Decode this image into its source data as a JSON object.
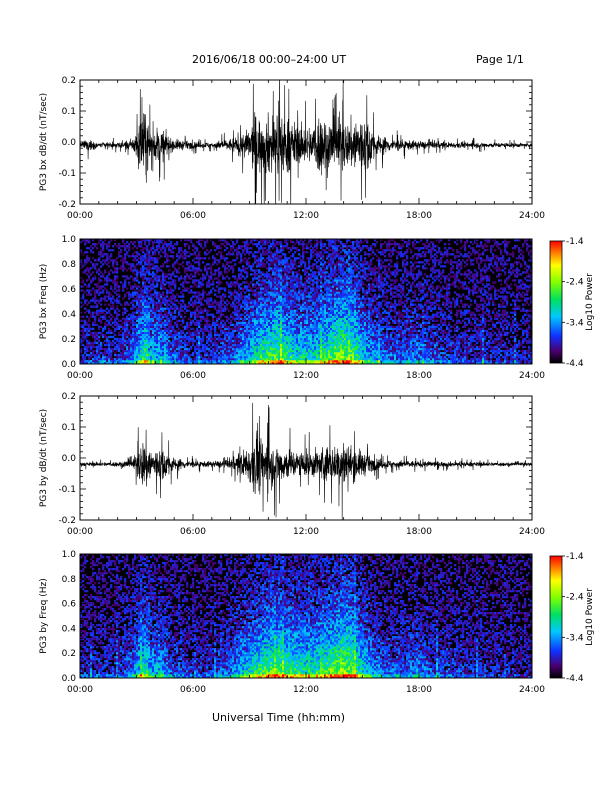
{
  "header": {
    "title": "2016/06/18  00:00–24:00 UT",
    "page": "Page 1/1"
  },
  "x_axis_title": "Universal Time (hh:mm)",
  "chart_data": [
    {
      "type": "line",
      "ylabel": "PG3 bx dB/dt (nT/sec)",
      "xlim": [
        "00:00",
        "24:00"
      ],
      "ylim": [
        -0.2,
        0.2
      ],
      "xticks": [
        "00:00",
        "06:00",
        "12:00",
        "18:00",
        "24:00"
      ],
      "yticks": [
        "0.2",
        "0.1",
        "0.0",
        "-0.1",
        "-0.2"
      ],
      "envelope": {
        "hours": [
          0,
          0.5,
          1,
          2,
          2.8,
          3.2,
          3.5,
          3.8,
          4.2,
          4.8,
          6,
          7,
          8,
          8.7,
          9,
          9.3,
          9.7,
          10.2,
          10.7,
          11.2,
          11.7,
          12.3,
          12.7,
          13.3,
          13.8,
          14.2,
          14.7,
          15.3,
          15.7,
          16.5,
          18,
          20,
          22,
          24
        ],
        "amplitude": [
          0.012,
          0.04,
          0.015,
          0.018,
          0.035,
          0.18,
          0.2,
          0.07,
          0.12,
          0.04,
          0.02,
          0.018,
          0.04,
          0.08,
          0.1,
          0.2,
          0.16,
          0.2,
          0.2,
          0.16,
          0.11,
          0.12,
          0.2,
          0.16,
          0.2,
          0.13,
          0.2,
          0.16,
          0.07,
          0.04,
          0.025,
          0.018,
          0.015,
          0.012
        ]
      }
    },
    {
      "type": "heatmap",
      "ylabel": "PG3 bx Freq (Hz)",
      "xlim": [
        "00:00",
        "24:00"
      ],
      "ylim": [
        0.0,
        1.0
      ],
      "xticks": [
        "00:00",
        "06:00",
        "12:00",
        "18:00",
        "24:00"
      ],
      "yticks": [
        "1.0",
        "0.8",
        "0.6",
        "0.4",
        "0.2",
        "0.0"
      ],
      "colorbar": {
        "label": "Log10 Power",
        "ticks": [
          "-1.4",
          "-2.4",
          "-3.4",
          "-4.4"
        ],
        "range": [
          -4.4,
          -1.4
        ]
      },
      "activity": {
        "hours": [
          0,
          1,
          2,
          2.8,
          3.2,
          3.5,
          3.8,
          4.2,
          4.8,
          6,
          7,
          8,
          8.7,
          9,
          9.5,
          10,
          10.5,
          11,
          11.5,
          12,
          12.5,
          13,
          13.5,
          14,
          14.5,
          15,
          15.5,
          16,
          17,
          18,
          19,
          20,
          22,
          24
        ],
        "level": [
          0.15,
          0.2,
          0.2,
          0.35,
          0.6,
          0.75,
          0.45,
          0.5,
          0.3,
          0.2,
          0.2,
          0.3,
          0.45,
          0.55,
          0.65,
          0.75,
          0.85,
          0.7,
          0.6,
          0.6,
          0.6,
          0.7,
          0.85,
          0.9,
          0.8,
          0.6,
          0.45,
          0.35,
          0.3,
          0.35,
          0.25,
          0.2,
          0.15,
          0.12
        ]
      }
    },
    {
      "type": "line",
      "ylabel": "PG3 by dB/dt (nT/sec)",
      "xlim": [
        "00:00",
        "24:00"
      ],
      "ylim": [
        -0.2,
        0.2
      ],
      "xticks": [
        "00:00",
        "06:00",
        "12:00",
        "18:00",
        "24:00"
      ],
      "yticks": [
        "0.2",
        "0.1",
        "0.0",
        "-0.1",
        "-0.2"
      ],
      "envelope": {
        "hours": [
          0,
          1,
          2,
          2.8,
          3.2,
          3.5,
          3.8,
          4.3,
          5,
          6,
          7,
          8,
          8.5,
          9,
          9.3,
          9.6,
          10,
          10.5,
          11,
          11.5,
          12,
          12.5,
          13,
          13.5,
          14,
          14.5,
          15,
          15.5,
          16.5,
          18,
          20,
          22,
          24
        ],
        "amplitude": [
          0.012,
          0.012,
          0.015,
          0.03,
          0.12,
          0.18,
          0.09,
          0.11,
          0.04,
          0.02,
          0.018,
          0.03,
          0.07,
          0.12,
          0.2,
          0.18,
          0.14,
          0.12,
          0.1,
          0.08,
          0.08,
          0.09,
          0.12,
          0.1,
          0.15,
          0.1,
          0.08,
          0.04,
          0.025,
          0.02,
          0.015,
          0.012,
          0.01
        ]
      }
    },
    {
      "type": "heatmap",
      "ylabel": "PG3 by Freq (Hz)",
      "xlim": [
        "00:00",
        "24:00"
      ],
      "ylim": [
        0.0,
        1.0
      ],
      "xticks": [
        "00:00",
        "06:00",
        "12:00",
        "18:00",
        "24:00"
      ],
      "yticks": [
        "1.0",
        "0.8",
        "0.6",
        "0.4",
        "0.2",
        "0.0"
      ],
      "colorbar": {
        "label": "Log10 Power",
        "ticks": [
          "-1.4",
          "-2.4",
          "-3.4",
          "-4.4"
        ],
        "range": [
          -4.4,
          -1.4
        ]
      },
      "activity": {
        "hours": [
          0,
          1,
          2,
          2.8,
          3.2,
          3.5,
          3.8,
          4.2,
          4.8,
          6,
          7,
          8,
          8.7,
          9,
          9.5,
          10,
          10.5,
          11,
          11.5,
          12,
          12.5,
          13,
          13.5,
          14,
          14.5,
          15,
          15.5,
          16,
          17,
          18,
          19,
          20,
          22,
          24
        ],
        "level": [
          0.15,
          0.2,
          0.2,
          0.35,
          0.6,
          0.7,
          0.45,
          0.5,
          0.3,
          0.2,
          0.2,
          0.35,
          0.55,
          0.6,
          0.7,
          0.8,
          0.85,
          0.75,
          0.7,
          0.65,
          0.65,
          0.75,
          0.85,
          0.95,
          0.85,
          0.6,
          0.45,
          0.35,
          0.3,
          0.35,
          0.25,
          0.2,
          0.15,
          0.12
        ]
      }
    }
  ]
}
